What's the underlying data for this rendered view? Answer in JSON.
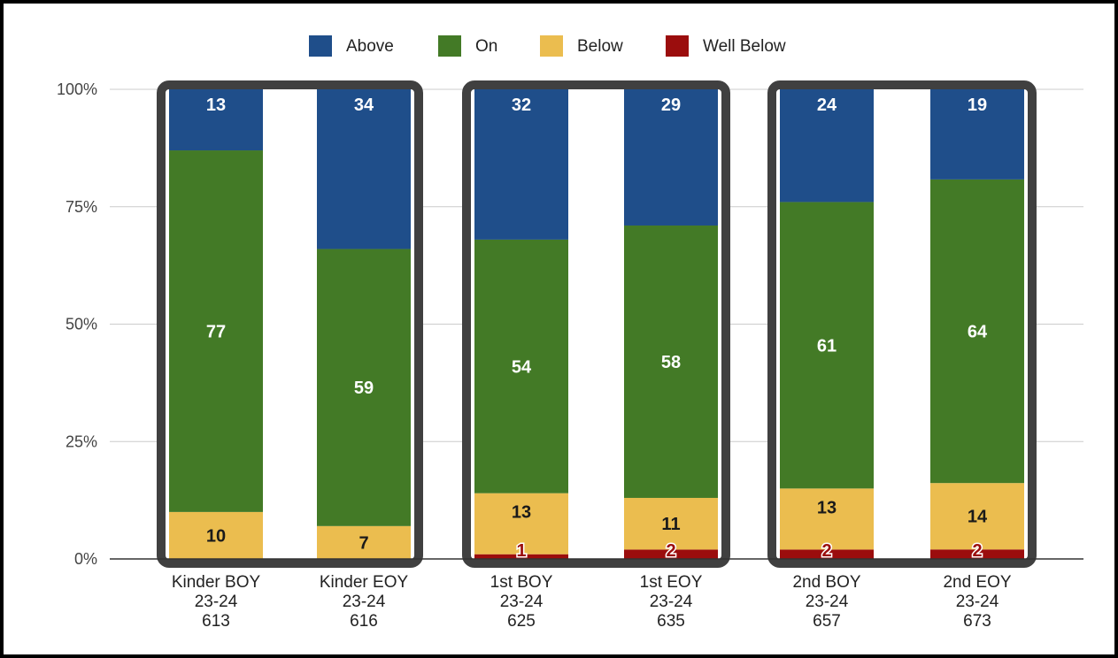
{
  "chart_data": {
    "type": "bar",
    "stacked": "percent",
    "categories": [
      [
        "Kinder BOY",
        "23-24",
        "613"
      ],
      [
        "Kinder EOY",
        "23-24",
        "616"
      ],
      [
        "1st BOY",
        "23-24",
        "625"
      ],
      [
        "1st EOY",
        "23-24",
        "635"
      ],
      [
        "2nd BOY",
        "23-24",
        "657"
      ],
      [
        "2nd EOY",
        "23-24",
        "673"
      ]
    ],
    "series": [
      {
        "name": "Well Below",
        "color": "#9b0d0d",
        "label_color": "#9b0d0d",
        "values": [
          0,
          0,
          1,
          2,
          2,
          2
        ],
        "labels": [
          "",
          "",
          "1",
          "2",
          "2",
          "2"
        ]
      },
      {
        "name": "Below",
        "color": "#ebbd4f",
        "label_color": "#1a1a1a",
        "values": [
          10,
          7,
          13,
          11,
          13,
          14
        ],
        "labels": [
          "10",
          "7",
          "13",
          "11",
          "13",
          "14"
        ]
      },
      {
        "name": "On",
        "color": "#437a26",
        "label_color": "#ffffff",
        "values": [
          77,
          59,
          54,
          58,
          61,
          64
        ],
        "labels": [
          "77",
          "59",
          "54",
          "58",
          "61",
          "64"
        ]
      },
      {
        "name": "Above",
        "color": "#1f4e8a",
        "label_color": "#ffffff",
        "values": [
          13,
          34,
          32,
          29,
          24,
          19
        ],
        "labels": [
          "13",
          "34",
          "32",
          "29",
          "24",
          "19"
        ]
      }
    ],
    "legend_order": [
      "Above",
      "On",
      "Below",
      "Well Below"
    ],
    "legend_position": "top",
    "y_ticks": [
      "0%",
      "25%",
      "50%",
      "75%",
      "100%"
    ],
    "ylim": [
      0,
      100
    ],
    "grid": true,
    "groups": [
      [
        0,
        1
      ],
      [
        2,
        3
      ],
      [
        4,
        5
      ]
    ]
  }
}
